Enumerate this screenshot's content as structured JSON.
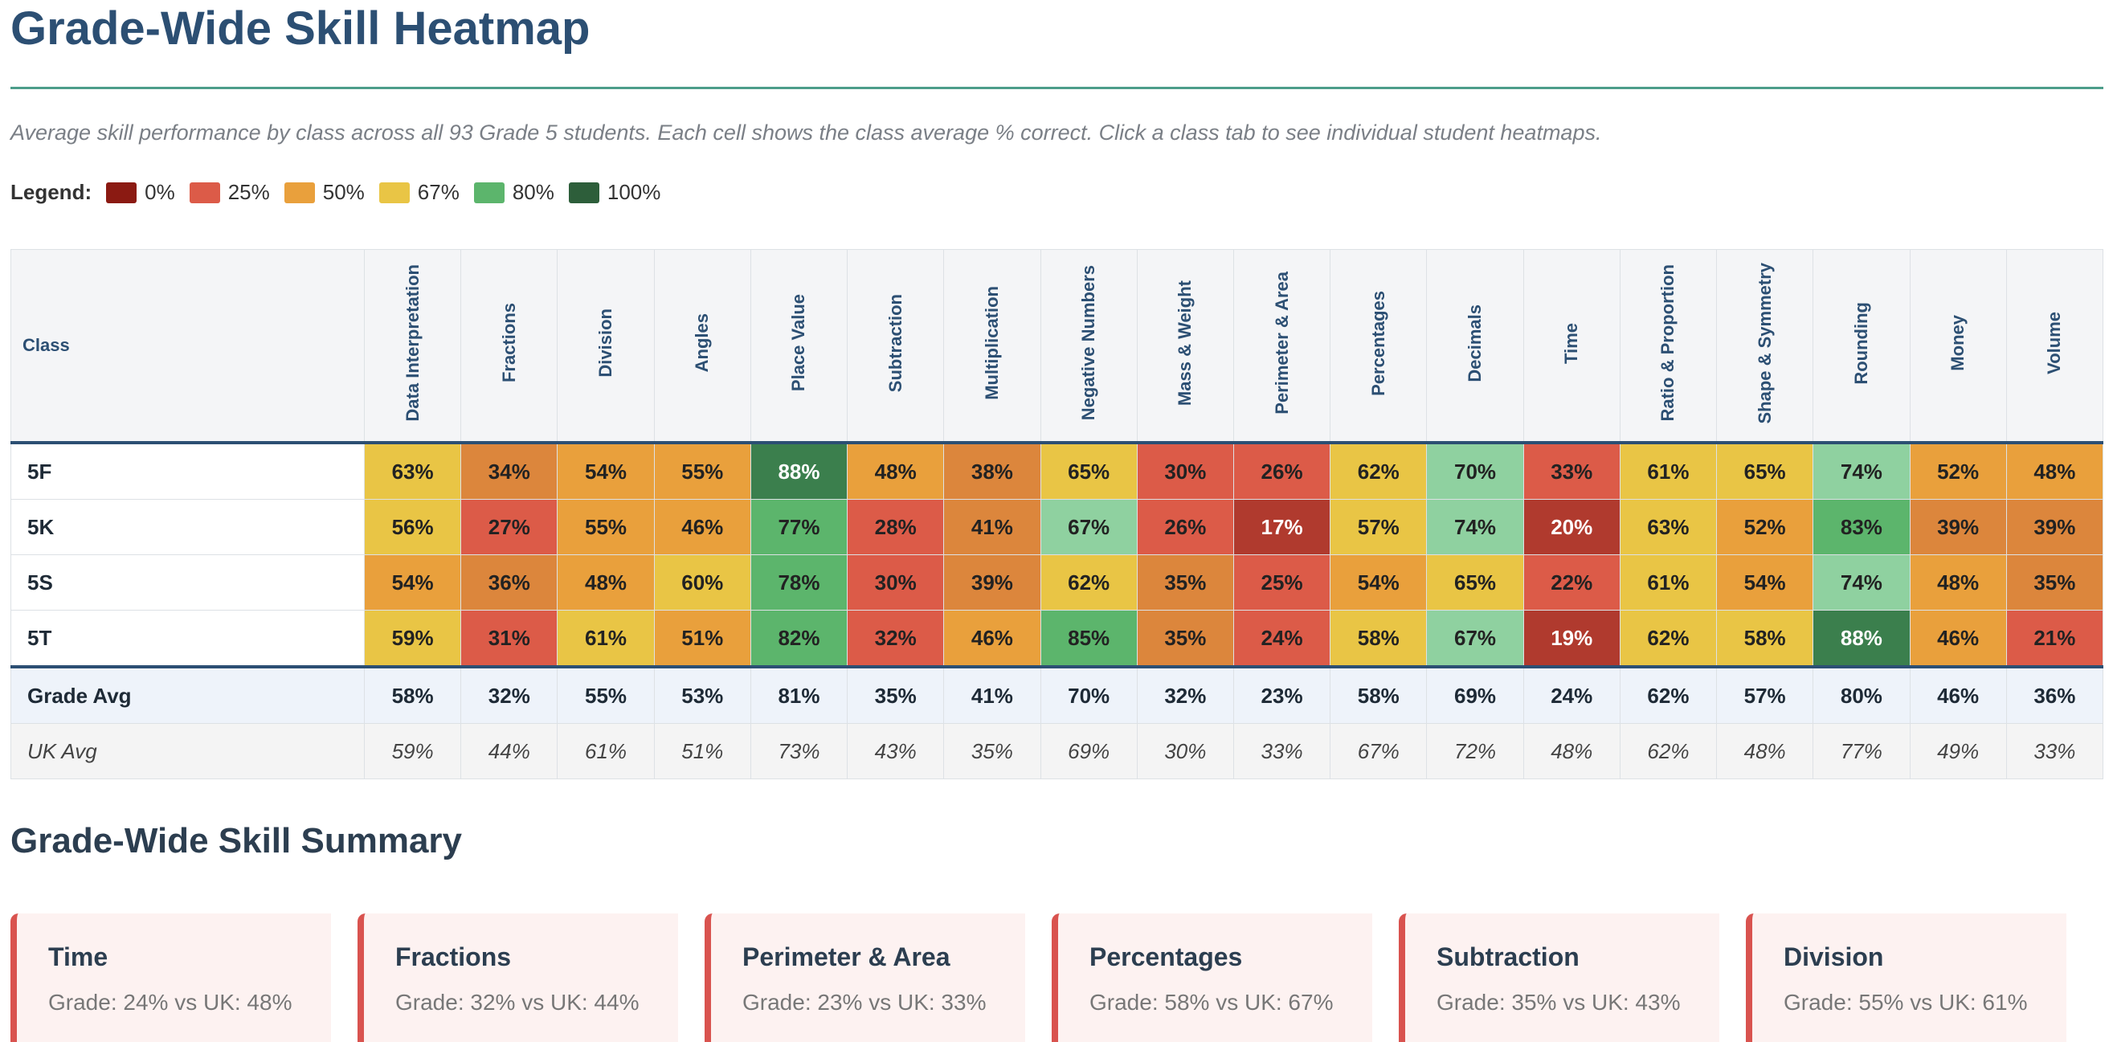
{
  "header": {
    "title": "Grade-Wide Skill Heatmap",
    "intro": "Average skill performance by class across all 93 Grade 5 students. Each cell shows the class average % correct. Click a class tab to see individual student heatmaps."
  },
  "legend": {
    "label": "Legend:",
    "items": [
      {
        "label": "0%",
        "color": "#8b1a12"
      },
      {
        "label": "25%",
        "color": "#dc5b48"
      },
      {
        "label": "50%",
        "color": "#e9a03c"
      },
      {
        "label": "67%",
        "color": "#e9c545"
      },
      {
        "label": "80%",
        "color": "#5cb56c"
      },
      {
        "label": "100%",
        "color": "#2d5e3a"
      }
    ]
  },
  "table": {
    "class_header": "Class",
    "columns": [
      "Data Interpretation",
      "Fractions",
      "Division",
      "Angles",
      "Place Value",
      "Subtraction",
      "Multiplication",
      "Negative Numbers",
      "Mass & Weight",
      "Perimeter & Area",
      "Percentages",
      "Decimals",
      "Time",
      "Ratio & Proportion",
      "Shape & Symmetry",
      "Rounding",
      "Money",
      "Volume"
    ],
    "rows": [
      {
        "class": "5F",
        "cells": [
          "63%",
          "34%",
          "54%",
          "55%",
          "88%",
          "48%",
          "38%",
          "65%",
          "30%",
          "26%",
          "62%",
          "70%",
          "33%",
          "61%",
          "65%",
          "74%",
          "52%",
          "48%"
        ]
      },
      {
        "class": "5K",
        "cells": [
          "56%",
          "27%",
          "55%",
          "46%",
          "77%",
          "28%",
          "41%",
          "67%",
          "26%",
          "17%",
          "57%",
          "74%",
          "20%",
          "63%",
          "52%",
          "83%",
          "39%",
          "39%"
        ]
      },
      {
        "class": "5S",
        "cells": [
          "54%",
          "36%",
          "48%",
          "60%",
          "78%",
          "30%",
          "39%",
          "62%",
          "35%",
          "25%",
          "54%",
          "65%",
          "22%",
          "61%",
          "54%",
          "74%",
          "48%",
          "35%"
        ]
      },
      {
        "class": "5T",
        "cells": [
          "59%",
          "31%",
          "61%",
          "51%",
          "82%",
          "32%",
          "46%",
          "85%",
          "35%",
          "24%",
          "58%",
          "67%",
          "19%",
          "62%",
          "58%",
          "88%",
          "46%",
          "21%"
        ]
      }
    ],
    "grade_avg": {
      "label": "Grade Avg",
      "cells": [
        "58%",
        "32%",
        "55%",
        "53%",
        "81%",
        "35%",
        "41%",
        "70%",
        "32%",
        "23%",
        "58%",
        "69%",
        "24%",
        "62%",
        "57%",
        "80%",
        "46%",
        "36%"
      ]
    },
    "uk_avg": {
      "label": "UK Avg",
      "cells": [
        "59%",
        "44%",
        "61%",
        "51%",
        "73%",
        "43%",
        "35%",
        "69%",
        "30%",
        "33%",
        "67%",
        "72%",
        "48%",
        "62%",
        "48%",
        "77%",
        "49%",
        "33%"
      ]
    }
  },
  "summary": {
    "title": "Grade-Wide Skill Summary",
    "cards": [
      {
        "title": "Time",
        "text": "Grade: 24% vs UK: 48%"
      },
      {
        "title": "Fractions",
        "text": "Grade: 32% vs UK: 44%"
      },
      {
        "title": "Perimeter & Area",
        "text": "Grade: 23% vs UK: 33%"
      },
      {
        "title": "Percentages",
        "text": "Grade: 58% vs UK: 67%"
      },
      {
        "title": "Subtraction",
        "text": "Grade: 35% vs UK: 43%"
      },
      {
        "title": "Division",
        "text": "Grade: 55% vs UK: 61%"
      }
    ]
  }
}
